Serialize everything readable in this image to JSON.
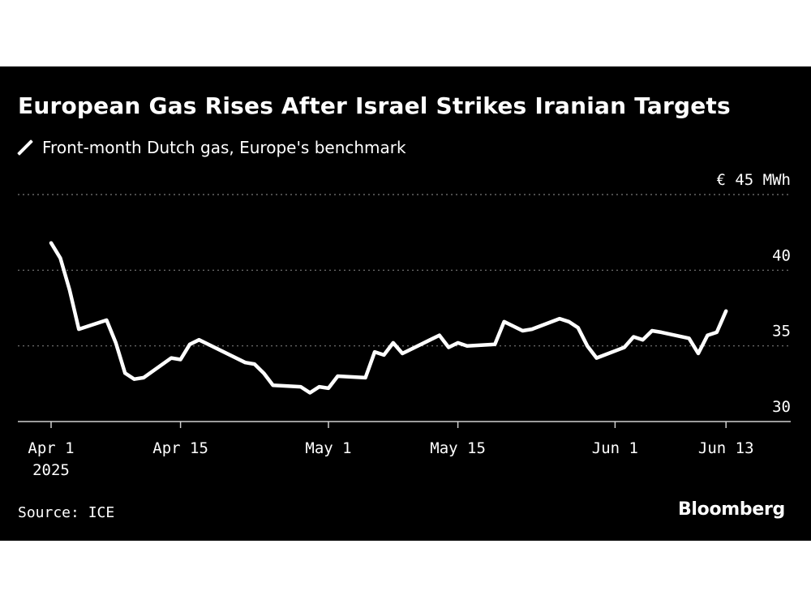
{
  "header": {
    "title": "European Gas Rises After Israel Strikes Iranian Targets"
  },
  "legend": {
    "label": "Front-month Dutch gas, Europe's benchmark"
  },
  "footer": {
    "source": "Source: ICE",
    "brand": "Bloomberg"
  },
  "colors": {
    "background": "#000000",
    "line": "#ffffff",
    "grid": "#6b6b6b"
  },
  "chart_data": {
    "type": "line",
    "title": "European Gas Rises After Israel Strikes Iranian Targets",
    "xlabel": "",
    "ylabel": "",
    "unit_label": "€ 45 MWh",
    "ylim": [
      30,
      45
    ],
    "yticks": [
      30,
      35,
      40,
      45
    ],
    "ytick_labels": [
      "30",
      "35",
      "40",
      "€ 45 MWh"
    ],
    "xlim": [
      "2025-03-31",
      "2025-06-20"
    ],
    "xticks": [
      {
        "date": "2025-04-01",
        "label": "Apr 1",
        "sublabel": "2025"
      },
      {
        "date": "2025-04-15",
        "label": "Apr 15"
      },
      {
        "date": "2025-05-01",
        "label": "May 1"
      },
      {
        "date": "2025-05-15",
        "label": "May 15"
      },
      {
        "date": "2025-06-01",
        "label": "Jun 1"
      },
      {
        "date": "2025-06-13",
        "label": "Jun 13"
      }
    ],
    "grid": true,
    "legend_position": "top-left",
    "series": [
      {
        "name": "Front-month Dutch gas, Europe's benchmark",
        "x": [
          "2025-04-01",
          "2025-04-02",
          "2025-04-03",
          "2025-04-04",
          "2025-04-07",
          "2025-04-08",
          "2025-04-09",
          "2025-04-10",
          "2025-04-11",
          "2025-04-14",
          "2025-04-15",
          "2025-04-16",
          "2025-04-17",
          "2025-04-22",
          "2025-04-23",
          "2025-04-24",
          "2025-04-25",
          "2025-04-28",
          "2025-04-29",
          "2025-04-30",
          "2025-05-01",
          "2025-05-02",
          "2025-05-05",
          "2025-05-06",
          "2025-05-07",
          "2025-05-08",
          "2025-05-09",
          "2025-05-12",
          "2025-05-13",
          "2025-05-14",
          "2025-05-15",
          "2025-05-16",
          "2025-05-19",
          "2025-05-20",
          "2025-05-21",
          "2025-05-22",
          "2025-05-23",
          "2025-05-26",
          "2025-05-27",
          "2025-05-28",
          "2025-05-29",
          "2025-05-30",
          "2025-06-02",
          "2025-06-03",
          "2025-06-04",
          "2025-06-05",
          "2025-06-06",
          "2025-06-09",
          "2025-06-10",
          "2025-06-11",
          "2025-06-12",
          "2025-06-13"
        ],
        "values": [
          41.8,
          40.8,
          38.7,
          36.1,
          36.7,
          35.2,
          33.2,
          32.8,
          32.9,
          34.2,
          34.1,
          35.1,
          35.4,
          33.9,
          33.8,
          33.2,
          32.4,
          32.3,
          31.9,
          32.3,
          32.2,
          33.0,
          32.9,
          34.6,
          34.4,
          35.2,
          34.5,
          35.4,
          35.7,
          34.9,
          35.2,
          35.0,
          35.1,
          36.6,
          36.3,
          36.0,
          36.1,
          36.8,
          36.6,
          36.2,
          35.0,
          34.2,
          34.9,
          35.6,
          35.4,
          36.0,
          35.9,
          35.5,
          34.5,
          35.7,
          35.9,
          37.3
        ]
      }
    ]
  }
}
